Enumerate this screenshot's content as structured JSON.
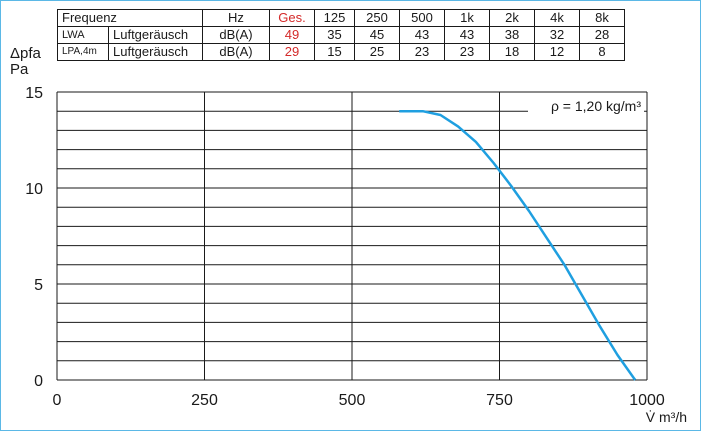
{
  "table": {
    "header": [
      "Frequenz",
      "Hz",
      "Ges.",
      "125",
      "250",
      "500",
      "1k",
      "2k",
      "4k",
      "8k"
    ],
    "rows": [
      {
        "sym": "LWA",
        "desc": "Luftgeräusch",
        "unit": "dB(A)",
        "values": [
          "49",
          "35",
          "45",
          "43",
          "43",
          "38",
          "32",
          "28"
        ]
      },
      {
        "sym": "LPA,4m",
        "desc": "Luftgeräusch",
        "unit": "dB(A)",
        "values": [
          "29",
          "15",
          "25",
          "23",
          "23",
          "18",
          "12",
          "8"
        ]
      }
    ],
    "highlight_color": "#d42a2a"
  },
  "chart_data": {
    "type": "line",
    "ylabel_top": "Δpfa",
    "ylabel_bottom": "Pa",
    "xlabel": "V̇ m³/h",
    "xlim": [
      0,
      1000
    ],
    "ylim": [
      0,
      15
    ],
    "x_ticks": [
      "0",
      "250",
      "500",
      "750",
      "1000"
    ],
    "y_ticks": [
      "0",
      "5",
      "10",
      "15"
    ],
    "annotation": "ρ = 1,20 kg/m³",
    "series": [
      {
        "color": "#1f9fe0",
        "x": [
          580,
          620,
          650,
          680,
          710,
          740,
          770,
          800,
          830,
          860,
          890,
          920,
          950,
          980
        ],
        "y": [
          14.0,
          14.0,
          13.8,
          13.2,
          12.4,
          11.3,
          10.1,
          8.8,
          7.4,
          6.0,
          4.4,
          2.8,
          1.3,
          0.0
        ]
      }
    ],
    "grid": true
  }
}
